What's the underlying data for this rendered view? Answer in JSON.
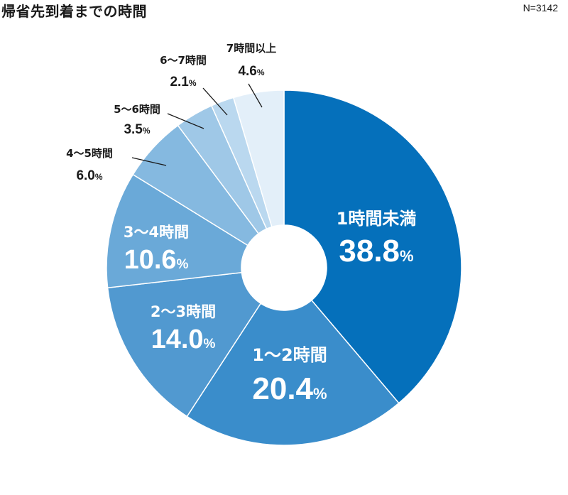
{
  "title": "帰省先到着までの時間",
  "sample": "N=3142",
  "percent_sign": "%",
  "chart_data": {
    "type": "pie",
    "donut": true,
    "start": "12 o'clock",
    "direction": "clockwise",
    "categories": [
      "1時間未満",
      "1～2時間",
      "2～3時間",
      "3～4時間",
      "4～5時間",
      "5～6時間",
      "6～7時間",
      "7時間以上"
    ],
    "values": [
      38.8,
      20.4,
      14.0,
      10.6,
      6.0,
      3.5,
      2.1,
      4.6
    ],
    "value_labels": [
      "38.8",
      "20.4",
      "14.0",
      "10.6",
      "6.0",
      "3.5",
      "2.1",
      "4.6"
    ],
    "colors": [
      "#0570bb",
      "#3a8dcb",
      "#5199d0",
      "#6aa9d8",
      "#85b9e0",
      "#9fc8e7",
      "#bad8ef",
      "#e3eff9"
    ]
  }
}
